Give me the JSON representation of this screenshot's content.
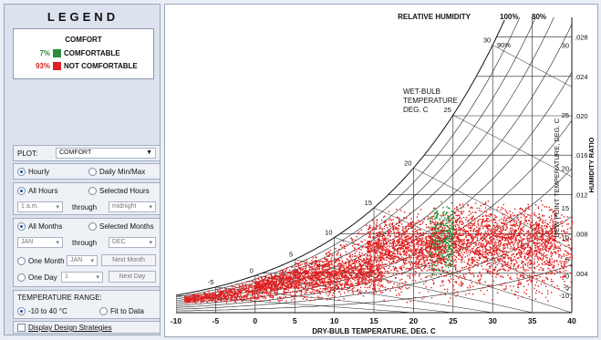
{
  "legend": {
    "title": "LEGEND",
    "heading": "COMFORT",
    "items": [
      {
        "pct": "7%",
        "label": "COMFORTABLE",
        "color": "#2a8a3a",
        "pct_color": "#2a8a3a"
      },
      {
        "pct": "93%",
        "label": "NOT COMFORTABLE",
        "color": "#e02020",
        "pct_color": "#e02020"
      }
    ]
  },
  "controls": {
    "plot_label": "PLOT:",
    "plot_value": "COMFORT",
    "hourly": "Hourly",
    "daily": "Daily Min/Max",
    "all_hours": "All Hours",
    "selected_hours": "Selected Hours",
    "hour_from": "1 a.m.",
    "through": "through",
    "hour_to": "midnight",
    "all_months": "All Months",
    "selected_months": "Selected Months",
    "month_from": "JAN",
    "month_to": "DEC",
    "one_month": "One Month",
    "one_month_value": "JAN",
    "next_month": "Next Month",
    "one_day": "One Day",
    "one_day_value": "1",
    "next_day": "Next Day",
    "temp_range_label": "TEMPERATURE RANGE:",
    "range_option_1": "-10 to 40 °C",
    "range_option_2": "Fit to Data",
    "display_strategies": "Display Design Strategies"
  },
  "chart_data": {
    "type": "scatter",
    "xlabel": "DRY-BULB TEMPERATURE, DEG. C",
    "ylabel": "HUMIDITY RATIO",
    "xlim": [
      -10,
      40
    ],
    "ylim": [
      0,
      0.03
    ],
    "x_ticks": [
      "-10",
      "-5",
      "0",
      "5",
      "10",
      "15",
      "20",
      "25",
      "30",
      "35",
      "40"
    ],
    "y_ticks": [
      ".004",
      ".008",
      ".012",
      ".016",
      ".020",
      ".024",
      ".028"
    ],
    "y_tick_values": [
      0.004,
      0.008,
      0.012,
      0.016,
      0.02,
      0.024,
      0.028
    ],
    "rh_header": "RELATIVE HUMIDITY",
    "rh_labels": [
      "100%",
      "80%"
    ],
    "rh_curve_label": "90%",
    "wet_bulb_label": [
      "WET-BULB",
      "TEMPERATURE",
      "DEG. C"
    ],
    "wet_bulb_values": [
      "-5",
      "0",
      "5",
      "10",
      "15",
      "20",
      "25",
      "30"
    ],
    "dew_point_label": "DEW POINT TEMPERATURE, DEG. C",
    "dew_point_values": [
      "30",
      "25",
      "20",
      "15",
      "10",
      "5",
      "0",
      "-5",
      "-10"
    ],
    "series": [
      {
        "name": "COMFORTABLE",
        "color": "#1e8a2e",
        "clusters": [
          {
            "x": [
              22,
              25
            ],
            "w": [
              0.0035,
              0.0115
            ],
            "n": 450
          }
        ]
      },
      {
        "name": "NOT COMFORTABLE",
        "color": "#e01e1e",
        "clusters": [
          {
            "x": [
              -9,
              40
            ],
            "w": [
              0.001,
              0.011
            ],
            "n": 3000
          },
          {
            "x": [
              0,
              16
            ],
            "w": [
              0.002,
              0.006
            ],
            "n": 1200
          },
          {
            "x": [
              14,
              24
            ],
            "w": [
              0.004,
              0.01
            ],
            "n": 900
          },
          {
            "x": [
              25,
              38
            ],
            "w": [
              0.004,
              0.0115
            ],
            "n": 1200
          }
        ]
      }
    ]
  }
}
